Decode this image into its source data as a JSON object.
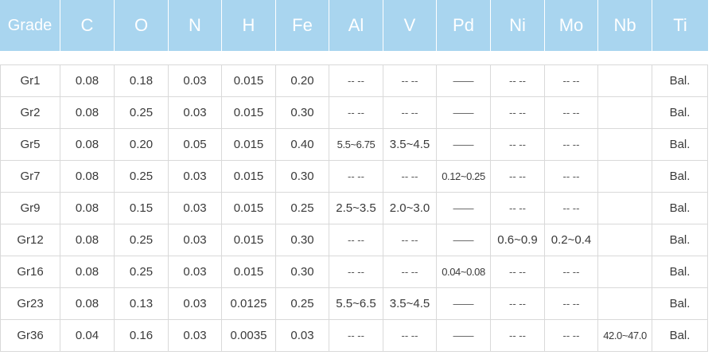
{
  "table": {
    "headers": [
      "Grade",
      "C",
      "O",
      "N",
      "H",
      "Fe",
      "Al",
      "V",
      "Pd",
      "Ni",
      "Mo",
      "Nb",
      "Ti"
    ],
    "rows": [
      [
        "Gr1",
        "0.08",
        "0.18",
        "0.03",
        "0.015",
        "0.20",
        "-- --",
        "-- --",
        "——",
        "-- --",
        "-- --",
        "",
        "Bal."
      ],
      [
        "Gr2",
        "0.08",
        "0.25",
        "0.03",
        "0.015",
        "0.30",
        "-- --",
        "-- --",
        "——",
        "-- --",
        "-- --",
        "",
        "Bal."
      ],
      [
        "Gr5",
        "0.08",
        "0.20",
        "0.05",
        "0.015",
        "0.40",
        "5.5~6.75",
        "3.5~4.5",
        "——",
        "-- --",
        "-- --",
        "",
        "Bal."
      ],
      [
        "Gr7",
        "0.08",
        "0.25",
        "0.03",
        "0.015",
        "0.30",
        "-- --",
        "-- --",
        "0.12~0.25",
        "-- --",
        "-- --",
        "",
        "Bal."
      ],
      [
        "Gr9",
        "0.08",
        "0.15",
        "0.03",
        "0.015",
        "0.25",
        "2.5~3.5",
        "2.0~3.0",
        "——",
        "-- --",
        "-- --",
        "",
        "Bal."
      ],
      [
        "Gr12",
        "0.08",
        "0.25",
        "0.03",
        "0.015",
        "0.30",
        "-- --",
        "-- --",
        "——",
        "0.6~0.9",
        "0.2~0.4",
        "",
        "Bal."
      ],
      [
        "Gr16",
        "0.08",
        "0.25",
        "0.03",
        "0.015",
        "0.30",
        "-- --",
        "-- --",
        "0.04~0.08",
        "-- --",
        "-- --",
        "",
        "Bal."
      ],
      [
        "Gr23",
        "0.08",
        "0.13",
        "0.03",
        "0.0125",
        "0.25",
        "5.5~6.5",
        "3.5~4.5",
        "——",
        "-- --",
        "-- --",
        "",
        "Bal."
      ],
      [
        "Gr36",
        "0.04",
        "0.16",
        "0.03",
        "0.0035",
        "0.03",
        "-- --",
        "-- --",
        "——",
        "-- --",
        "-- --",
        "42.0~47.0",
        "Bal."
      ]
    ]
  },
  "colors": {
    "header_bg": "#a9d5ef",
    "header_text": "#ffffff",
    "cell_text": "#3a3a3a",
    "grid_line": "#d9d9d9"
  }
}
